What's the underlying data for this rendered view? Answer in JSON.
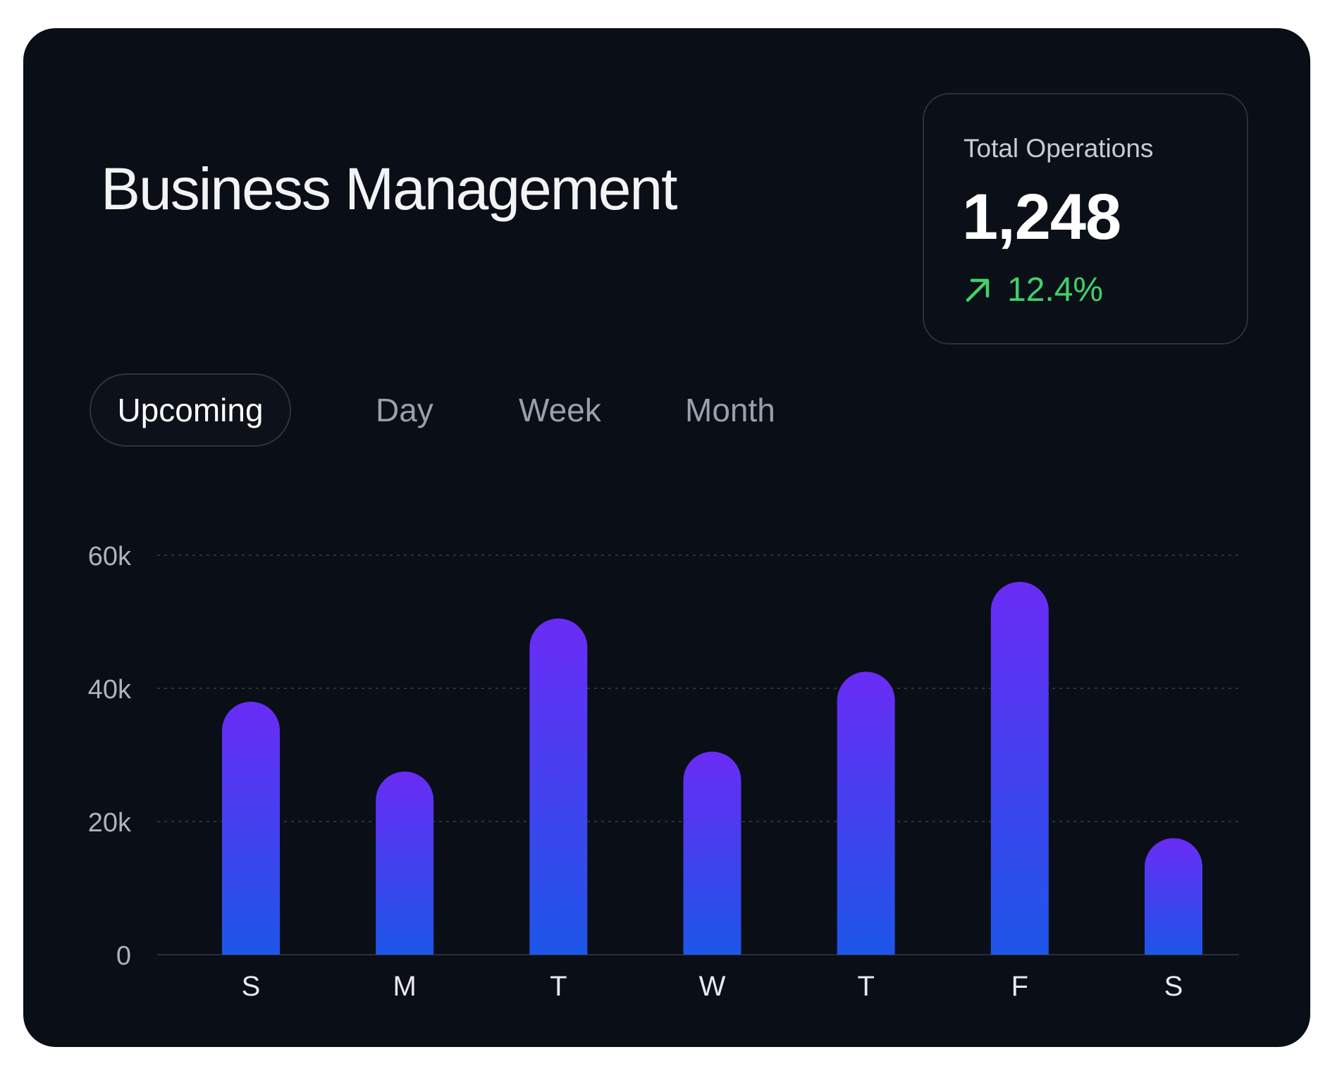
{
  "header": {
    "title": "Business Management"
  },
  "kpi": {
    "label": "Total Operations",
    "value": "1,248",
    "change": "12.4%",
    "trend_icon": "arrow-up-right-icon",
    "change_color": "#3fd26a"
  },
  "tabs": [
    {
      "label": "Upcoming",
      "active": true
    },
    {
      "label": "Day",
      "active": false
    },
    {
      "label": "Week",
      "active": false
    },
    {
      "label": "Month",
      "active": false
    }
  ],
  "chart_data": {
    "type": "bar",
    "categories": [
      "S",
      "M",
      "T",
      "W",
      "T",
      "F",
      "S"
    ],
    "values": [
      38000,
      27500,
      50500,
      30500,
      42500,
      56000,
      17500
    ],
    "yticks": [
      "0",
      "20k",
      "40k",
      "60k"
    ],
    "ytick_values": [
      0,
      20000,
      40000,
      60000
    ],
    "ylim": [
      0,
      60000
    ],
    "grid": true,
    "bar_gradient": [
      "#6a2cf5",
      "#1d56e8"
    ]
  }
}
